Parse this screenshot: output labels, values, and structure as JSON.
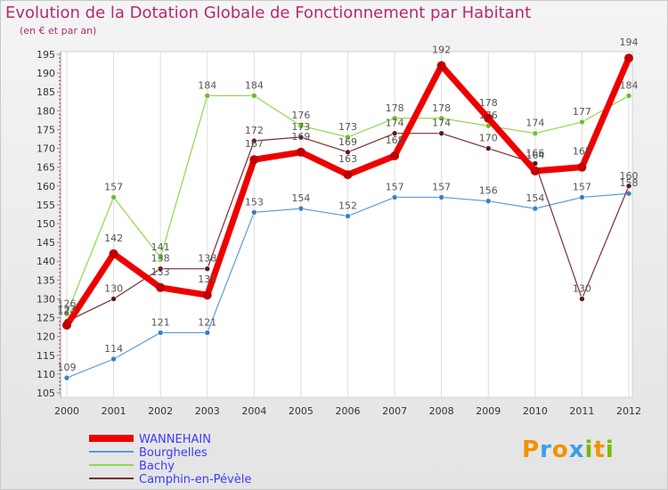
{
  "chart_data": {
    "type": "line",
    "title": "Evolution de la Dotation Globale de Fonctionnement par Habitant",
    "subtitle": "(en € et par an)",
    "xlabel": "",
    "ylabel": "",
    "ylim": [
      105,
      195
    ],
    "y_ticks": [
      105,
      110,
      115,
      120,
      125,
      130,
      135,
      140,
      145,
      150,
      155,
      160,
      165,
      170,
      175,
      180,
      185,
      190,
      195
    ],
    "categories": [
      "2000",
      "2001",
      "2002",
      "2003",
      "2004",
      "2005",
      "2006",
      "2007",
      "2008",
      "2009",
      "2010",
      "2011",
      "2012"
    ],
    "series": [
      {
        "name": "Bourghelles",
        "color": "#5b9bd5",
        "point_color": "#3c7fc4",
        "values": [
          109,
          114,
          121,
          121,
          153,
          154,
          152,
          157,
          157,
          156,
          154,
          157,
          158
        ]
      },
      {
        "name": "Bachy",
        "color": "#8ed84a",
        "point_color": "#6cc02a",
        "values": [
          126,
          157,
          141,
          184,
          184,
          176,
          173,
          178,
          178,
          176,
          174,
          177,
          184
        ]
      },
      {
        "name": "Camphin-en-Pévèle",
        "color": "#7a2e2e",
        "point_color": "#5a1a1a",
        "values": [
          124,
          130,
          138,
          138,
          172,
          173,
          169,
          174,
          174,
          170,
          166,
          130,
          160
        ]
      },
      {
        "name": "WANNEHAIN",
        "color": "#ee0000",
        "point_color": "#c00000",
        "values": [
          123,
          142,
          133,
          131,
          167,
          169,
          163,
          168,
          192,
          178,
          164,
          165,
          194
        ]
      }
    ],
    "legend": [
      "WANNEHAIN",
      "Bourghelles",
      "Bachy",
      "Camphin-en-Pévèle"
    ],
    "legend_position": "bottom-left",
    "grid": "vertical"
  },
  "logo": {
    "text": "Proxiti",
    "letters": [
      "P",
      "r",
      "o",
      "x",
      "i",
      "t",
      "i"
    ],
    "colors": [
      "#f39200",
      "#3aa0e0",
      "#f39200",
      "#3aa0e0",
      "#7ab800",
      "#f39200",
      "#7ab800"
    ]
  }
}
